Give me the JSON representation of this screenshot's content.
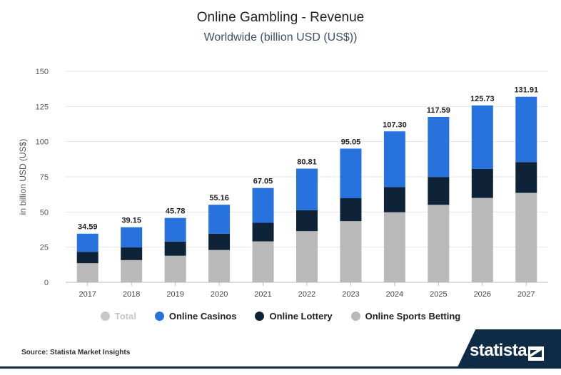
{
  "chart_data": {
    "type": "bar",
    "stacked": true,
    "title": "Online Gambling - Revenue",
    "subtitle": "Worldwide (billion USD (US$))",
    "ylabel": "in billion USD (US$)",
    "xlabel": "",
    "ylim": [
      0,
      150
    ],
    "yticks": [
      0,
      25,
      50,
      75,
      100,
      125,
      150
    ],
    "categories": [
      "2017",
      "2018",
      "2019",
      "2020",
      "2021",
      "2022",
      "2023",
      "2024",
      "2025",
      "2026",
      "2027"
    ],
    "totals": [
      34.59,
      39.15,
      45.78,
      55.16,
      67.05,
      80.81,
      95.05,
      107.3,
      117.59,
      125.73,
      131.91
    ],
    "total_labels": [
      "34.59",
      "39.15",
      "45.78",
      "55.16",
      "67.05",
      "80.81",
      "95.05",
      "107.30",
      "117.59",
      "125.73",
      "131.91"
    ],
    "series": [
      {
        "name": "Online Sports Betting",
        "color": "#b9b9b9",
        "values": [
          13.6,
          15.8,
          18.9,
          23.0,
          29.1,
          36.4,
          43.5,
          49.8,
          55.1,
          60.0,
          63.6
        ]
      },
      {
        "name": "Online Lottery",
        "color": "#0e2238",
        "values": [
          8.1,
          9.0,
          10.1,
          11.6,
          13.2,
          14.9,
          16.3,
          17.9,
          19.8,
          20.6,
          21.9
        ]
      },
      {
        "name": "Online Casinos",
        "color": "#2772dd",
        "values": [
          12.89,
          14.35,
          16.78,
          20.56,
          24.75,
          29.51,
          35.25,
          39.6,
          42.69,
          45.13,
          46.41
        ]
      }
    ],
    "grid": true,
    "legend_position": "bottom"
  },
  "legend": {
    "items": [
      {
        "label": "Total",
        "color": "#c7c7c7",
        "disabled": true
      },
      {
        "label": "Online Casinos",
        "color": "#2772dd",
        "disabled": false
      },
      {
        "label": "Online Lottery",
        "color": "#0e2238",
        "disabled": false
      },
      {
        "label": "Online Sports Betting",
        "color": "#b9b9b9",
        "disabled": false
      }
    ]
  },
  "footer": {
    "source": "Source: Statista Market Insights",
    "brand": "statista"
  }
}
